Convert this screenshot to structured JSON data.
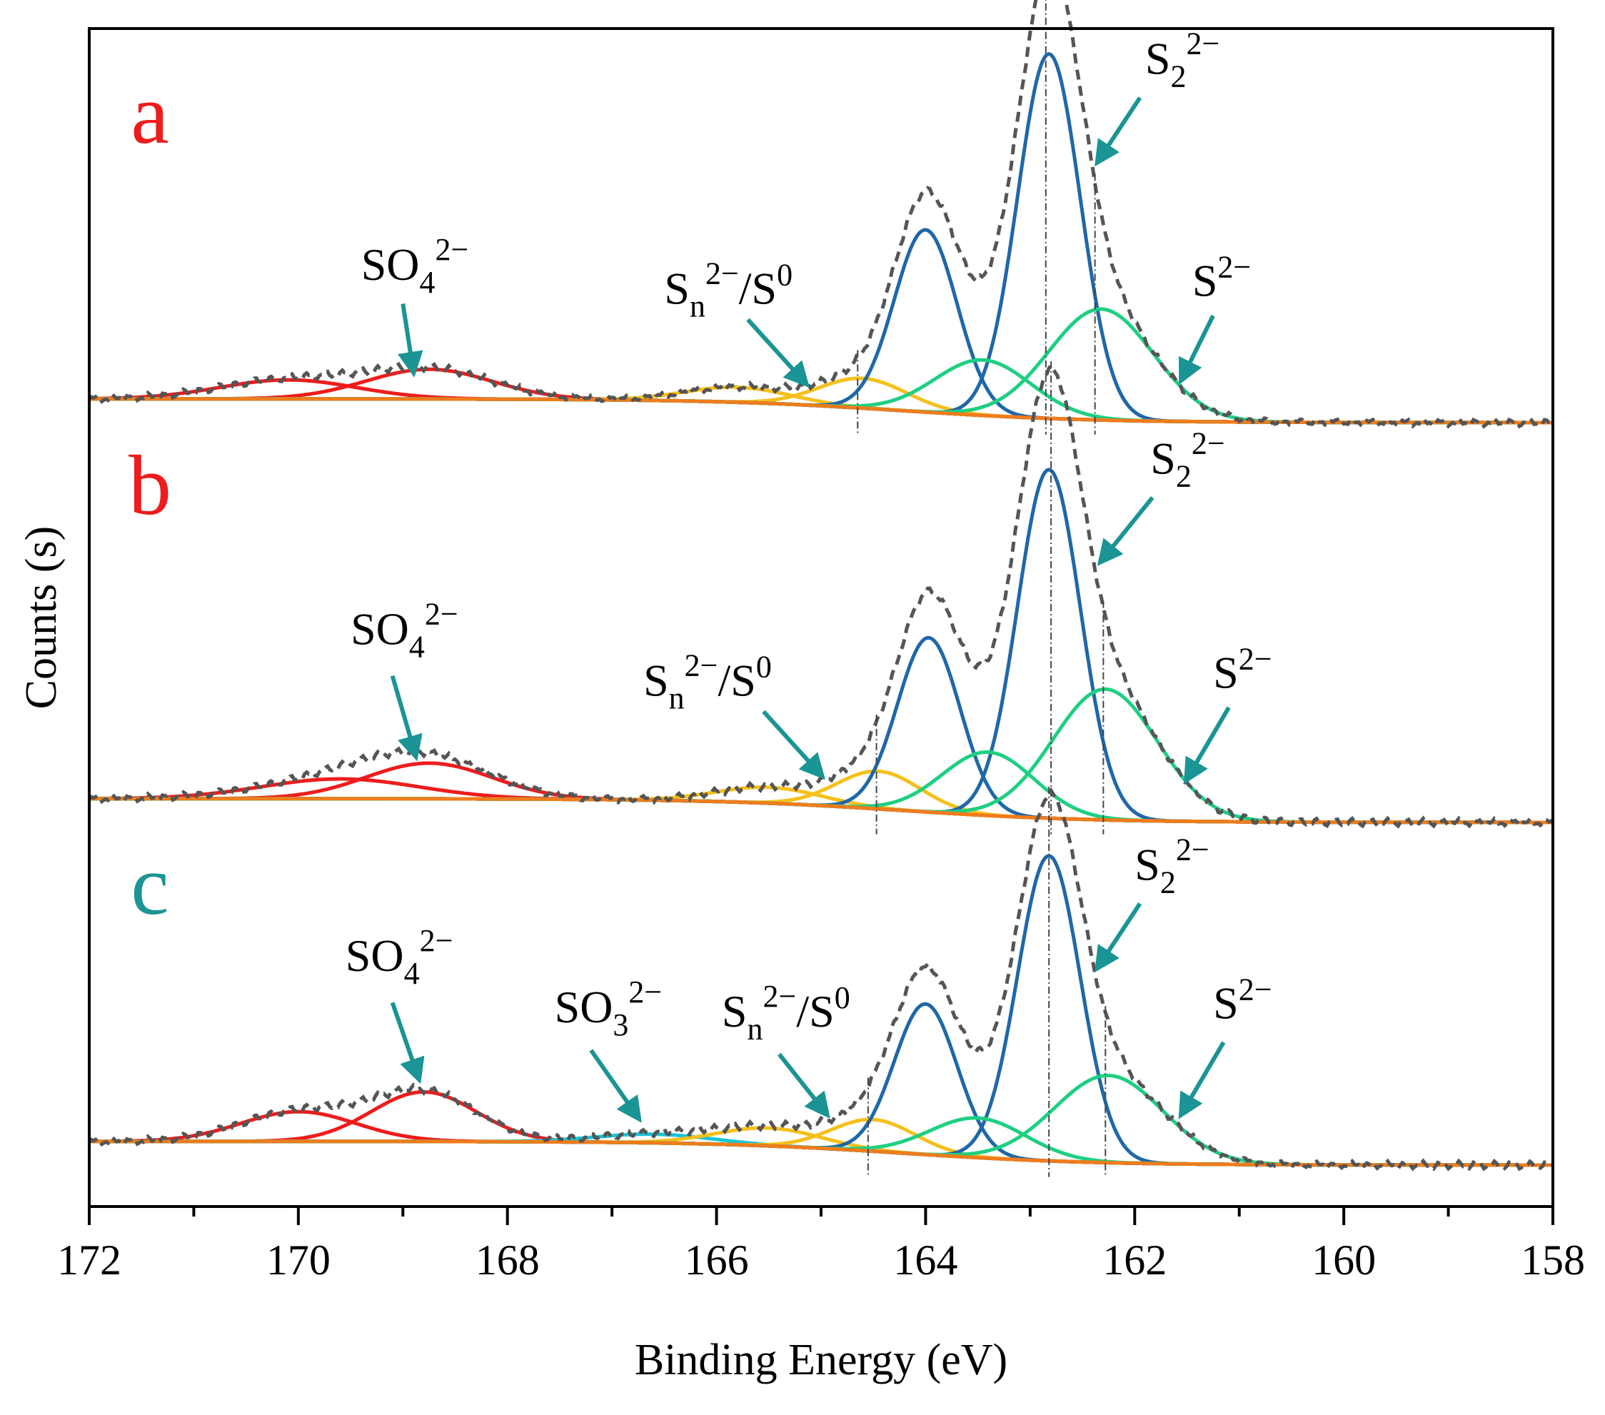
{
  "chart_data": {
    "type": "line",
    "x_axis": {
      "label": "Binding Energy (eV)",
      "range": [
        172,
        158
      ],
      "reversed": true,
      "ticks": [
        172,
        170,
        168,
        166,
        164,
        162,
        160,
        158
      ],
      "minor_step": 1
    },
    "y_axis": {
      "label": "Counts (s)",
      "tick_labels": false
    },
    "grid": false,
    "colors": {
      "SO4": "#ee1c1c",
      "SO3": "#19c4d6",
      "Sn_S0": "#f5c01c",
      "S2_2": "#1f68a8",
      "S2": "#1ecf82",
      "background": "#f07c1c",
      "envelope": "#555555",
      "arrow": "#1a9494",
      "guide": "#444444"
    },
    "panels": [
      {
        "letter": "a",
        "letter_color": "#ee1c1c",
        "baseline": {
          "high_be": 0.06,
          "low_be": 0.0,
          "center": 164.2,
          "width": 0.9
        },
        "envelope_noise": 0.01,
        "peaks": [
          {
            "group": "SO4",
            "center": 170.1,
            "height": 0.048,
            "sigma": 0.65
          },
          {
            "group": "SO4",
            "center": 168.75,
            "height": 0.075,
            "sigma": 0.6
          },
          {
            "group": "Sn_S0",
            "center": 165.8,
            "height": 0.038,
            "sigma": 0.5
          },
          {
            "group": "Sn_S0",
            "center": 164.6,
            "height": 0.075,
            "sigma": 0.42
          },
          {
            "group": "S2_2",
            "center": 164.0,
            "height": 0.46,
            "sigma": 0.3
          },
          {
            "group": "S2_2",
            "center": 162.82,
            "height": 0.92,
            "sigma": 0.3
          },
          {
            "group": "S2",
            "center": 163.45,
            "height": 0.14,
            "sigma": 0.46
          },
          {
            "group": "S2",
            "center": 162.32,
            "height": 0.28,
            "sigma": 0.5
          }
        ],
        "guide_lines": [
          164.65,
          162.85,
          162.38
        ],
        "labels": [
          {
            "name": "SO4",
            "text": "SO",
            "sub": "4",
            "sup": "2−",
            "pos": [
              169.4,
              0.36
            ],
            "arrow_from": [
              169.0,
              0.3
            ],
            "arrow_to": [
              168.9,
              0.13
            ]
          },
          {
            "name": "Sn-S0",
            "text": "S",
            "sub": "n",
            "sup": "2−",
            "tail": "/S",
            "tail_sup": "0",
            "pos": [
              166.5,
              0.3
            ],
            "arrow_from": [
              165.7,
              0.26
            ],
            "arrow_to": [
              165.15,
              0.1
            ]
          },
          {
            "name": "S2-2",
            "text": "S",
            "sub": "2",
            "sup": "2−",
            "pos": [
              161.9,
              0.88
            ],
            "arrow_from": [
              161.95,
              0.82
            ],
            "arrow_to": [
              162.35,
              0.66
            ]
          },
          {
            "name": "S2",
            "text": "S",
            "sup": "2−",
            "pos": [
              161.45,
              0.32
            ],
            "arrow_from": [
              161.25,
              0.27
            ],
            "arrow_to": [
              161.55,
              0.11
            ]
          }
        ]
      },
      {
        "letter": "b",
        "letter_color": "#ee1c1c",
        "baseline": {
          "high_be": 0.06,
          "low_be": 0.0,
          "center": 164.2,
          "width": 0.9
        },
        "envelope_noise": 0.01,
        "peaks": [
          {
            "group": "SO4",
            "center": 169.6,
            "height": 0.05,
            "sigma": 0.75
          },
          {
            "group": "SO4",
            "center": 168.75,
            "height": 0.09,
            "sigma": 0.6
          },
          {
            "group": "Sn_S0",
            "center": 165.5,
            "height": 0.04,
            "sigma": 0.5
          },
          {
            "group": "Sn_S0",
            "center": 164.45,
            "height": 0.095,
            "sigma": 0.4
          },
          {
            "group": "S2_2",
            "center": 163.97,
            "height": 0.44,
            "sigma": 0.3
          },
          {
            "group": "S2_2",
            "center": 162.82,
            "height": 0.88,
            "sigma": 0.3
          },
          {
            "group": "S2",
            "center": 163.4,
            "height": 0.16,
            "sigma": 0.44
          },
          {
            "group": "S2",
            "center": 162.28,
            "height": 0.33,
            "sigma": 0.5
          }
        ],
        "guide_lines": [
          164.47,
          162.8,
          162.3
        ],
        "labels": [
          {
            "name": "SO4",
            "text": "SO",
            "sub": "4",
            "sup": "2−",
            "pos": [
              169.5,
              0.45
            ],
            "arrow_from": [
              169.1,
              0.37
            ],
            "arrow_to": [
              168.88,
              0.17
            ]
          },
          {
            "name": "Sn-S0",
            "text": "S",
            "sub": "n",
            "sup": "2−",
            "tail": "/S",
            "tail_sup": "0",
            "pos": [
              166.7,
              0.32
            ],
            "arrow_from": [
              165.55,
              0.28
            ],
            "arrow_to": [
              165.0,
              0.12
            ]
          },
          {
            "name": "S2-2",
            "text": "S",
            "sub": "2",
            "sup": "2−",
            "pos": [
              161.85,
              0.88
            ],
            "arrow_from": [
              161.83,
              0.82
            ],
            "arrow_to": [
              162.32,
              0.66
            ]
          },
          {
            "name": "S2",
            "text": "S",
            "sup": "2−",
            "pos": [
              161.25,
              0.34
            ],
            "arrow_from": [
              161.1,
              0.29
            ],
            "arrow_to": [
              161.5,
              0.11
            ]
          }
        ]
      },
      {
        "letter": "c",
        "letter_color": "#1a9494",
        "baseline": {
          "high_be": 0.06,
          "low_be": 0.0,
          "center": 164.2,
          "width": 0.9
        },
        "envelope_noise": 0.01,
        "peaks": [
          {
            "group": "SO4",
            "center": 170.0,
            "height": 0.075,
            "sigma": 0.55
          },
          {
            "group": "SO4",
            "center": 168.8,
            "height": 0.125,
            "sigma": 0.5
          },
          {
            "group": "SO3",
            "center": 166.6,
            "height": 0.022,
            "sigma": 0.55
          },
          {
            "group": "Sn_S0",
            "center": 165.5,
            "height": 0.045,
            "sigma": 0.5
          },
          {
            "group": "Sn_S0",
            "center": 164.5,
            "height": 0.08,
            "sigma": 0.4
          },
          {
            "group": "S2_2",
            "center": 164.0,
            "height": 0.38,
            "sigma": 0.3
          },
          {
            "group": "S2_2",
            "center": 162.82,
            "height": 0.77,
            "sigma": 0.3
          },
          {
            "group": "S2",
            "center": 163.5,
            "height": 0.1,
            "sigma": 0.46
          },
          {
            "group": "S2",
            "center": 162.25,
            "height": 0.22,
            "sigma": 0.52
          }
        ],
        "guide_lines": [
          164.55,
          162.82,
          162.28
        ],
        "labels": [
          {
            "name": "SO4",
            "text": "SO",
            "sub": "4",
            "sup": "2−",
            "pos": [
              169.55,
              0.49
            ],
            "arrow_from": [
              169.1,
              0.41
            ],
            "arrow_to": [
              168.85,
              0.22
            ]
          },
          {
            "name": "SO3",
            "text": "SO",
            "sub": "3",
            "sup": "2−",
            "pos": [
              167.55,
              0.36
            ],
            "arrow_from": [
              167.2,
              0.29
            ],
            "arrow_to": [
              166.75,
              0.12
            ]
          },
          {
            "name": "Sn-S0",
            "text": "S",
            "sub": "n",
            "sup": "2−",
            "tail": "/S",
            "tail_sup": "0",
            "pos": [
              165.95,
              0.35
            ],
            "arrow_from": [
              165.4,
              0.28
            ],
            "arrow_to": [
              164.95,
              0.13
            ]
          },
          {
            "name": "S2-2",
            "text": "S",
            "sub": "2",
            "sup": "2−",
            "pos": [
              162.0,
              0.72
            ],
            "arrow_from": [
              161.95,
              0.66
            ],
            "arrow_to": [
              162.35,
              0.5
            ]
          },
          {
            "name": "S2",
            "text": "S",
            "sup": "2−",
            "pos": [
              161.25,
              0.37
            ],
            "arrow_from": [
              161.15,
              0.31
            ],
            "arrow_to": [
              161.55,
              0.13
            ]
          }
        ]
      }
    ]
  }
}
